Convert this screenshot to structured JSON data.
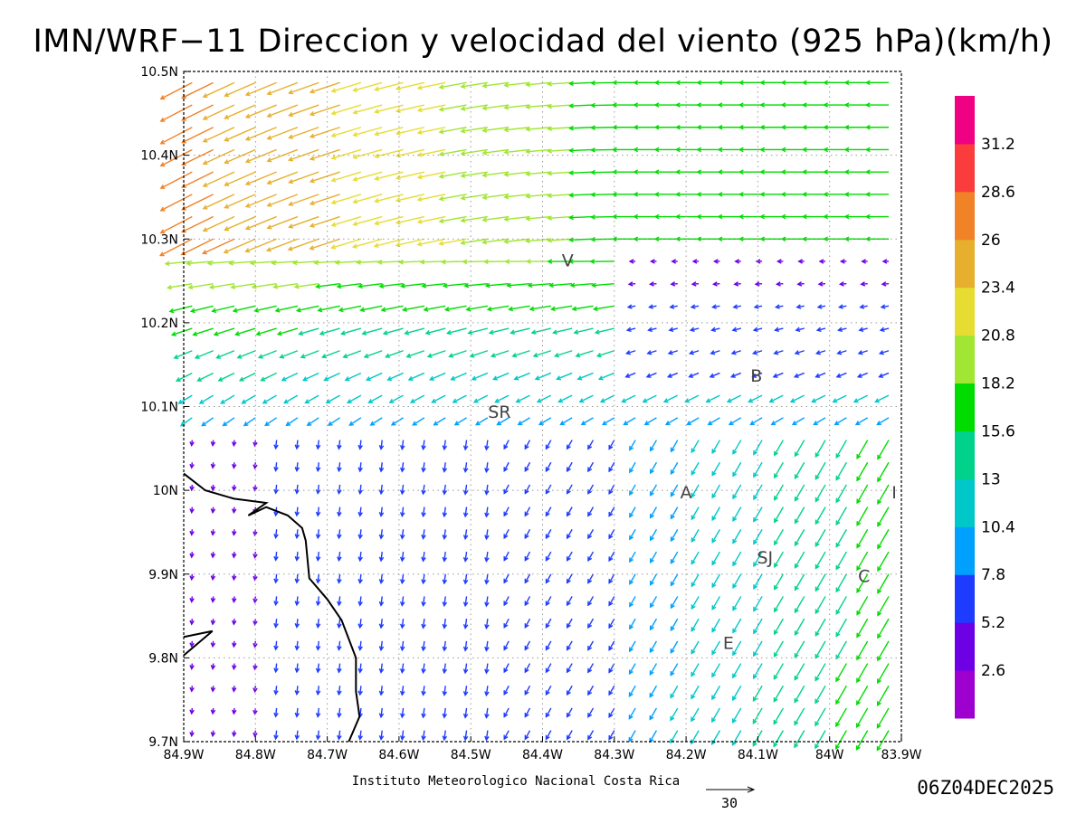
{
  "title": "IMN/WRF−11 Direccion y velocidad del viento (925 hPa)(km/h)",
  "institution": "Instituto Meteorologico Nacional Costa Rica",
  "timestamp": "06Z04DEC2025",
  "reference_vector_label": "30",
  "colors": {
    "border": "#000000",
    "grid": "#9a9a9a",
    "coastline": "#000000"
  },
  "chart_data": {
    "type": "vector-field",
    "xlim": [
      -84.9,
      -83.9
    ],
    "ylim": [
      9.7,
      10.5
    ],
    "xticks": [
      {
        "value": -84.9,
        "label": "84.9W"
      },
      {
        "value": -84.8,
        "label": "84.8W"
      },
      {
        "value": -84.7,
        "label": "84.7W"
      },
      {
        "value": -84.6,
        "label": "84.6W"
      },
      {
        "value": -84.5,
        "label": "84.5W"
      },
      {
        "value": -84.4,
        "label": "84.4W"
      },
      {
        "value": -84.3,
        "label": "84.3W"
      },
      {
        "value": -84.2,
        "label": "84.2W"
      },
      {
        "value": -84.1,
        "label": "84.1W"
      },
      {
        "value": -84.0,
        "label": "84W"
      },
      {
        "value": -83.9,
        "label": "83.9W"
      }
    ],
    "yticks": [
      {
        "value": 9.7,
        "label": "9.7N"
      },
      {
        "value": 9.8,
        "label": "9.8N"
      },
      {
        "value": 9.9,
        "label": "9.9N"
      },
      {
        "value": 10.0,
        "label": "10N"
      },
      {
        "value": 10.1,
        "label": "10.1N"
      },
      {
        "value": 10.2,
        "label": "10.2N"
      },
      {
        "value": 10.3,
        "label": "10.3N"
      },
      {
        "value": 10.4,
        "label": "10.4N"
      },
      {
        "value": 10.5,
        "label": "10.5N"
      }
    ],
    "grid": true,
    "colorbar": {
      "levels": [
        "2.6",
        "5.2",
        "7.8",
        "10.4",
        "13",
        "15.6",
        "18.2",
        "20.8",
        "23.4",
        "26",
        "28.6",
        "31.2"
      ],
      "colors": [
        "#9e00d0",
        "#6e00e6",
        "#1e3cff",
        "#00a0ff",
        "#00c8c8",
        "#00d28c",
        "#00dc00",
        "#a0e632",
        "#e6dc32",
        "#e6af2d",
        "#f08228",
        "#fa3c3c",
        "#f00082"
      ]
    },
    "reference_vector": {
      "speed": 30
    },
    "places": [
      {
        "label": "V",
        "lon": -84.365,
        "lat": 10.275
      },
      {
        "label": "B",
        "lon": -84.102,
        "lat": 10.137
      },
      {
        "label": "SR",
        "lon": -84.46,
        "lat": 10.094
      },
      {
        "label": "A",
        "lon": -84.2,
        "lat": 9.998
      },
      {
        "label": "I",
        "lon": -83.91,
        "lat": 9.998
      },
      {
        "label": "SJ",
        "lon": -84.09,
        "lat": 9.92
      },
      {
        "label": "C",
        "lon": -83.952,
        "lat": 9.898
      },
      {
        "label": "E",
        "lon": -84.141,
        "lat": 9.818
      }
    ],
    "coastline": [
      {
        "points": [
          [
            -84.9,
            10.02
          ],
          [
            -84.87,
            10.0
          ],
          [
            -84.83,
            9.99
          ],
          [
            -84.785,
            9.985
          ],
          [
            -84.81,
            9.97
          ],
          [
            -84.785,
            9.98
          ],
          [
            -84.755,
            9.97
          ],
          [
            -84.735,
            9.955
          ],
          [
            -84.73,
            9.94
          ],
          [
            -84.725,
            9.895
          ],
          [
            -84.7,
            9.87
          ],
          [
            -84.68,
            9.845
          ],
          [
            -84.66,
            9.8
          ],
          [
            -84.66,
            9.76
          ],
          [
            -84.655,
            9.73
          ],
          [
            -84.67,
            9.7
          ]
        ]
      },
      {
        "points": [
          [
            -84.9,
            9.825
          ],
          [
            -84.86,
            9.832
          ],
          [
            -84.9,
            9.803
          ]
        ]
      }
    ]
  }
}
